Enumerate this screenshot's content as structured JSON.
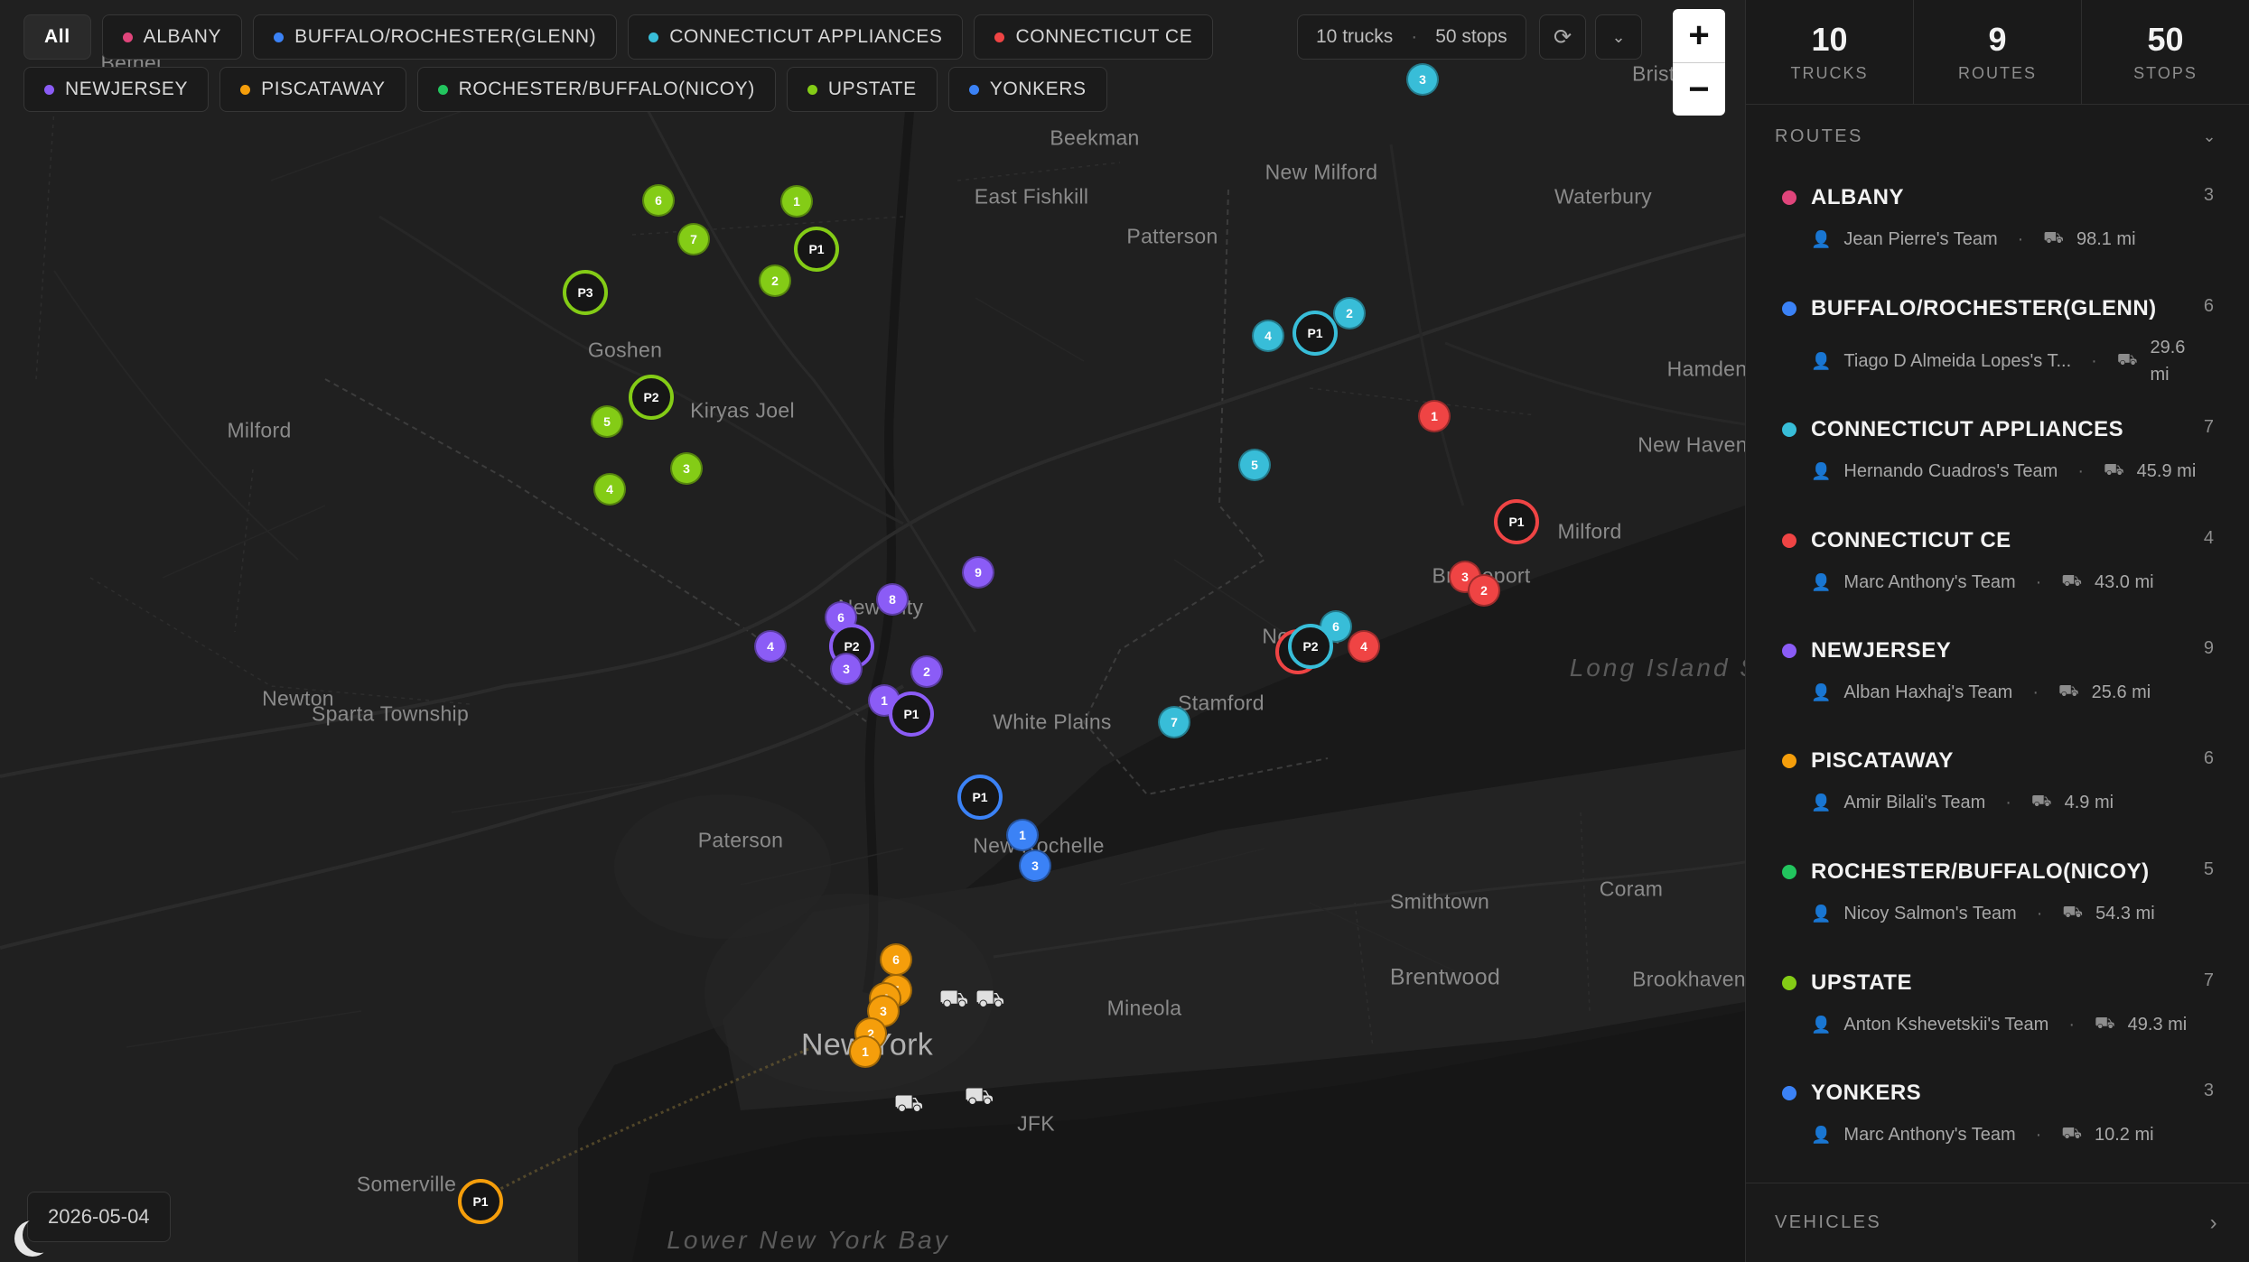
{
  "filters": {
    "row1": [
      {
        "label": "All",
        "active": true,
        "color": ""
      },
      {
        "label": "ALBANY",
        "color": "#e0457b"
      },
      {
        "label": "BUFFALO/ROCHESTER(GLENN)",
        "color": "#3b82f6"
      },
      {
        "label": "CONNECTICUT APPLIANCES",
        "color": "#38bdd8"
      },
      {
        "label": "CONNECTICUT CE",
        "color": "#ef4444"
      }
    ],
    "row2": [
      {
        "label": "NEWJERSEY",
        "color": "#8b5cf6"
      },
      {
        "label": "PISCATAWAY",
        "color": "#f59e0b"
      },
      {
        "label": "ROCHESTER/BUFFALO(NICOY)",
        "color": "#22c55e"
      },
      {
        "label": "UPSTATE",
        "color": "#84cc16"
      },
      {
        "label": "YONKERS",
        "color": "#3b82f6"
      }
    ]
  },
  "map_stats": {
    "trucks": "10 trucks",
    "stops": "50 stops"
  },
  "icons": {
    "refresh": "refresh-icon",
    "chevron": "chevron-down-icon",
    "zoom_in": "plus-icon",
    "zoom_out": "minus-icon",
    "theme": "moon-icon",
    "truck": "truck-icon"
  },
  "zoom": {
    "in": "+",
    "out": "−"
  },
  "date": "2026-05-04",
  "places": [
    {
      "name": "Bethel"
    },
    {
      "name": "Beekman"
    },
    {
      "name": "East Fishkill"
    },
    {
      "name": "Patterson"
    },
    {
      "name": "New Milford"
    },
    {
      "name": "Waterbury"
    },
    {
      "name": "Goshen"
    },
    {
      "name": "Kiryas Joel"
    },
    {
      "name": "Milford"
    },
    {
      "name": "Hamden"
    },
    {
      "name": "New Haven"
    },
    {
      "name": "Milford"
    },
    {
      "name": "Bridgeport"
    },
    {
      "name": "Newton"
    },
    {
      "name": "Sparta Township"
    },
    {
      "name": "White Plains"
    },
    {
      "name": "Stamford"
    },
    {
      "name": "Paterson"
    },
    {
      "name": "New Rochelle"
    },
    {
      "name": "Smithtown"
    },
    {
      "name": "Coram"
    },
    {
      "name": "Brentwood"
    },
    {
      "name": "Brookhaven"
    },
    {
      "name": "Mineola"
    },
    {
      "name": "New York"
    },
    {
      "name": "JFK"
    },
    {
      "name": "Somerville"
    },
    {
      "name": "Long Island Sound"
    },
    {
      "name": "Lower New York Bay"
    },
    {
      "name": "New City"
    },
    {
      "name": "Bristol"
    },
    {
      "name": "Norwalk"
    }
  ],
  "kpis": [
    {
      "value": "10",
      "label": "TRUCKS"
    },
    {
      "value": "9",
      "label": "ROUTES"
    },
    {
      "value": "50",
      "label": "STOPS"
    }
  ],
  "routes_header": "ROUTES",
  "routes": [
    {
      "name": "ALBANY",
      "count": "3",
      "team": "Jean Pierre's Team",
      "distance": "98.1 mi",
      "color": "#e0457b"
    },
    {
      "name": "BUFFALO/ROCHESTER(GLENN)",
      "count": "6",
      "team": "Tiago D Almeida Lopes's T...",
      "distance": "29.6 mi",
      "color": "#3b82f6"
    },
    {
      "name": "CONNECTICUT APPLIANCES",
      "count": "7",
      "team": "Hernando Cuadros's Team",
      "distance": "45.9 mi",
      "color": "#38bdd8"
    },
    {
      "name": "CONNECTICUT CE",
      "count": "4",
      "team": "Marc Anthony's Team",
      "distance": "43.0 mi",
      "color": "#ef4444"
    },
    {
      "name": "NEWJERSEY",
      "count": "9",
      "team": "Alban Haxhaj's Team",
      "distance": "25.6 mi",
      "color": "#8b5cf6"
    },
    {
      "name": "PISCATAWAY",
      "count": "6",
      "team": "Amir Bilali's Team",
      "distance": "4.9 mi",
      "color": "#f59e0b"
    },
    {
      "name": "ROCHESTER/BUFFALO(NICOY)",
      "count": "5",
      "team": "Nicoy Salmon's Team",
      "distance": "54.3 mi",
      "color": "#22c55e"
    },
    {
      "name": "UPSTATE",
      "count": "7",
      "team": "Anton Kshevetskii's Team",
      "distance": "49.3 mi",
      "color": "#84cc16"
    },
    {
      "name": "YONKERS",
      "count": "3",
      "team": "Marc Anthony's Team",
      "distance": "10.2 mi",
      "color": "#3b82f6"
    }
  ],
  "vehicles_header": "VEHICLES",
  "markers": [
    {
      "label": "3",
      "kind": "stop",
      "route": 2
    },
    {
      "label": "6",
      "kind": "stop",
      "route": 7
    },
    {
      "label": "1",
      "kind": "stop",
      "route": 7
    },
    {
      "label": "7",
      "kind": "stop",
      "route": 7
    },
    {
      "label": "P1",
      "kind": "depot",
      "route": 7
    },
    {
      "label": "2",
      "kind": "stop",
      "route": 7
    },
    {
      "label": "P3",
      "kind": "depot",
      "route": 7
    },
    {
      "label": "P2",
      "kind": "depot",
      "route": 7
    },
    {
      "label": "5",
      "kind": "stop",
      "route": 7
    },
    {
      "label": "3",
      "kind": "stop",
      "route": 7
    },
    {
      "label": "4",
      "kind": "stop",
      "route": 7
    },
    {
      "label": "4",
      "kind": "stop",
      "route": 2
    },
    {
      "label": "P1",
      "kind": "depot",
      "route": 2
    },
    {
      "label": "2",
      "kind": "stop",
      "route": 2
    },
    {
      "label": "5",
      "kind": "stop",
      "route": 2
    },
    {
      "label": "1",
      "kind": "stop",
      "route": 3
    },
    {
      "label": "P1",
      "kind": "depot",
      "route": 3
    },
    {
      "label": "3",
      "kind": "stop",
      "route": 3
    },
    {
      "label": "2",
      "kind": "stop",
      "route": 3
    },
    {
      "label": "6",
      "kind": "stop",
      "route": 2
    },
    {
      "label": "P1",
      "kind": "depot",
      "route": 3
    },
    {
      "label": "P2",
      "kind": "depot",
      "route": 2
    },
    {
      "label": "4",
      "kind": "stop",
      "route": 3
    },
    {
      "label": "7",
      "kind": "stop",
      "route": 2
    },
    {
      "label": "9",
      "kind": "stop",
      "route": 4
    },
    {
      "label": "8",
      "kind": "stop",
      "route": 4
    },
    {
      "label": "6",
      "kind": "stop",
      "route": 4
    },
    {
      "label": "4",
      "kind": "stop",
      "route": 4
    },
    {
      "label": "P2",
      "kind": "depot",
      "route": 4
    },
    {
      "label": "3",
      "kind": "stop",
      "route": 4
    },
    {
      "label": "2",
      "kind": "stop",
      "route": 4
    },
    {
      "label": "1",
      "kind": "stop",
      "route": 4
    },
    {
      "label": "P1",
      "kind": "depot",
      "route": 4
    },
    {
      "label": "P1",
      "kind": "depot",
      "route": 8
    },
    {
      "label": "1",
      "kind": "stop",
      "route": 8
    },
    {
      "label": "3",
      "kind": "stop",
      "route": 8
    },
    {
      "label": "6",
      "kind": "stop",
      "route": 5
    },
    {
      "label": "5",
      "kind": "stop",
      "route": 5
    },
    {
      "label": "4",
      "kind": "stop",
      "route": 5
    },
    {
      "label": "3",
      "kind": "stop",
      "route": 5
    },
    {
      "label": "2",
      "kind": "stop",
      "route": 5
    },
    {
      "label": "1",
      "kind": "stop",
      "route": 5
    },
    {
      "label": "P1",
      "kind": "depot",
      "route": 5
    }
  ]
}
